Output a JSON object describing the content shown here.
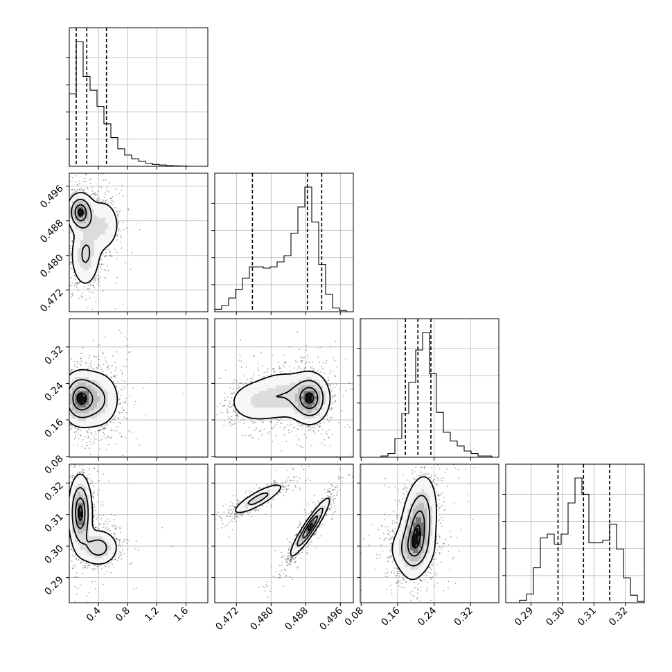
{
  "chart_data": {
    "type": "corner",
    "parameters": [
      {
        "index": 0,
        "range": [
          0.0,
          1.9
        ],
        "ticks": [
          0.4,
          0.8,
          1.2,
          1.6
        ],
        "tick_labels": [
          "0.4",
          "0.8",
          "1.2",
          "1.6"
        ]
      },
      {
        "index": 1,
        "range": [
          0.467,
          0.499
        ],
        "ticks": [
          0.472,
          0.48,
          0.488,
          0.496
        ],
        "tick_labels": [
          "0.472",
          "0.480",
          "0.488",
          "0.496"
        ]
      },
      {
        "index": 2,
        "range": [
          0.078,
          0.382
        ],
        "ticks": [
          0.08,
          0.16,
          0.24,
          0.32
        ],
        "tick_labels": [
          "0.08",
          "0.16",
          "0.24",
          "0.32"
        ]
      },
      {
        "index": 3,
        "range": [
          0.282,
          0.326
        ],
        "ticks": [
          0.29,
          0.3,
          0.31,
          0.32
        ],
        "tick_labels": [
          "0.29",
          "0.30",
          "0.31",
          "0.32"
        ]
      }
    ],
    "histograms": [
      {
        "param": 0,
        "bin_edges": [
          0.0,
          0.095,
          0.19,
          0.285,
          0.38,
          0.475,
          0.57,
          0.665,
          0.76,
          0.855,
          0.95,
          1.045,
          1.14,
          1.235,
          1.33,
          1.425,
          1.52,
          1.615,
          1.71,
          1.805,
          1.9
        ],
        "counts": [
          58,
          100,
          72,
          61,
          48,
          34,
          23,
          14,
          9,
          6,
          4,
          2.5,
          1.5,
          1,
          0.5,
          0.3,
          0.2,
          0,
          0,
          0
        ],
        "quantiles": [
          0.095,
          0.24,
          0.51
        ]
      },
      {
        "param": 1,
        "bin_edges": [
          0.467,
          0.4686,
          0.4702,
          0.4718,
          0.4734,
          0.475,
          0.4766,
          0.4782,
          0.4798,
          0.4814,
          0.483,
          0.4846,
          0.4862,
          0.4878,
          0.4894,
          0.491,
          0.4926,
          0.4942,
          0.4958,
          0.4974,
          0.499
        ],
        "counts": [
          2,
          5,
          11,
          18,
          27,
          36,
          36,
          35,
          36,
          40,
          45,
          63,
          84,
          100,
          72,
          38,
          14,
          3,
          1,
          0
        ],
        "quantiles": [
          0.4757,
          0.4884,
          0.4917
        ]
      },
      {
        "param": 2,
        "bin_edges": [
          0.078,
          0.0932,
          0.1084,
          0.1236,
          0.1388,
          0.154,
          0.1692,
          0.1844,
          0.1996,
          0.2148,
          0.23,
          0.2452,
          0.2604,
          0.2756,
          0.2908,
          0.306,
          0.3212,
          0.3364,
          0.3516,
          0.3668,
          0.382
        ],
        "counts": [
          0,
          0,
          0,
          1,
          3,
          15,
          35,
          60,
          86,
          100,
          67,
          36,
          20,
          13,
          9,
          5,
          3,
          1,
          1,
          0
        ],
        "quantiles": [
          0.177,
          0.2045,
          0.233
        ]
      },
      {
        "param": 3,
        "bin_edges": [
          0.282,
          0.2842,
          0.2864,
          0.2886,
          0.2908,
          0.293,
          0.2952,
          0.2974,
          0.2996,
          0.3018,
          0.304,
          0.3062,
          0.3084,
          0.3106,
          0.3128,
          0.315,
          0.3172,
          0.3194,
          0.3216,
          0.3238,
          0.326
        ],
        "counts": [
          0,
          0,
          2,
          7,
          28,
          52,
          55,
          47,
          55,
          80,
          100,
          87,
          48,
          48,
          50,
          63,
          43,
          20,
          6,
          1
        ],
        "quantiles": [
          0.2986,
          0.3067,
          0.315
        ]
      }
    ],
    "contour_panels": [
      {
        "x_param": 0,
        "y_param": 1,
        "peaks": [
          {
            "x": 0.15,
            "y": 0.49,
            "sx": 0.09,
            "sy": 0.0022,
            "w": 1.0
          },
          {
            "x": 0.22,
            "y": 0.48,
            "sx": 0.11,
            "sy": 0.004,
            "w": 0.45
          },
          {
            "x": 0.45,
            "y": 0.487,
            "sx": 0.14,
            "sy": 0.0035,
            "w": 0.35
          }
        ],
        "levels": [
          0.95,
          0.72,
          0.4,
          0.12
        ]
      },
      {
        "x_param": 0,
        "y_param": 2,
        "peaks": [
          {
            "x": 0.14,
            "y": 0.207,
            "sx": 0.13,
            "sy": 0.03,
            "w": 1.0
          },
          {
            "x": 0.4,
            "y": 0.205,
            "sx": 0.16,
            "sy": 0.034,
            "w": 0.5
          }
        ],
        "levels": [
          0.95,
          0.72,
          0.4,
          0.12
        ]
      },
      {
        "x_param": 1,
        "y_param": 2,
        "peaks": [
          {
            "x": 0.4891,
            "y": 0.207,
            "sx": 0.0022,
            "sy": 0.028,
            "w": 1.0
          },
          {
            "x": 0.483,
            "y": 0.215,
            "sx": 0.004,
            "sy": 0.03,
            "w": 0.4
          },
          {
            "x": 0.476,
            "y": 0.199,
            "sx": 0.0035,
            "sy": 0.026,
            "w": 0.3
          }
        ],
        "levels": [
          0.95,
          0.72,
          0.4,
          0.12
        ]
      },
      {
        "x_param": 0,
        "y_param": 3,
        "peaks": [
          {
            "x": 0.15,
            "y": 0.3105,
            "sx": 0.08,
            "sy": 0.006,
            "w": 1.0
          },
          {
            "x": 0.4,
            "y": 0.2995,
            "sx": 0.14,
            "sy": 0.003,
            "w": 0.55
          }
        ],
        "levels": [
          0.95,
          0.72,
          0.4,
          0.12
        ]
      },
      {
        "x_param": 1,
        "y_param": 3,
        "peaks": [
          {
            "x": 0.489,
            "y": 0.306,
            "sx": 0.0022,
            "sy": 0.0045,
            "w": 1.0,
            "rho": 0.93
          },
          {
            "x": 0.477,
            "y": 0.315,
            "sx": 0.003,
            "sy": 0.0025,
            "w": 0.55,
            "rho": 0.85
          }
        ],
        "levels": [
          0.95,
          0.72,
          0.4,
          0.12
        ]
      },
      {
        "x_param": 2,
        "y_param": 3,
        "peaks": [
          {
            "x": 0.205,
            "y": 0.306,
            "sx": 0.02,
            "sy": 0.008,
            "w": 1.0,
            "rho": 0.3
          },
          {
            "x": 0.19,
            "y": 0.299,
            "sx": 0.028,
            "sy": 0.004,
            "w": 0.35
          }
        ],
        "levels": [
          0.95,
          0.72,
          0.4,
          0.12
        ]
      }
    ],
    "grid": true,
    "xlabel": "",
    "ylabel": ""
  }
}
